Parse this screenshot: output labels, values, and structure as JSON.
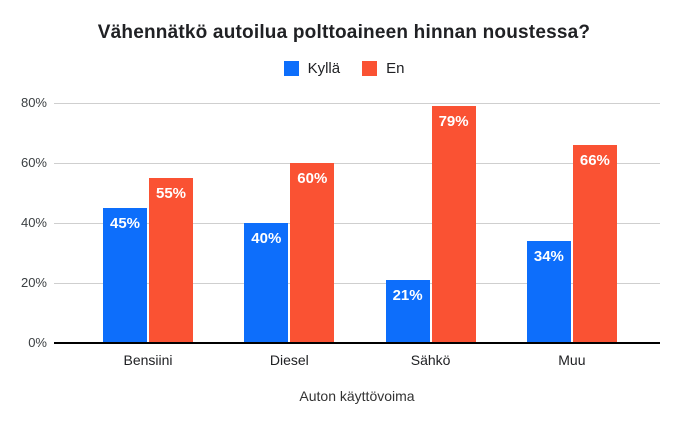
{
  "chart_data": {
    "type": "bar",
    "title": "Vähennätkö autoilua polttoaineen hinnan noustessa?",
    "xlabel": "Auton käyttövoima",
    "ylabel": "",
    "categories": [
      "Bensiini",
      "Diesel",
      "Sähkö",
      "Muu"
    ],
    "series": [
      {
        "name": "Kyllä",
        "color": "#0d6efb",
        "values": [
          45,
          40,
          21,
          34
        ]
      },
      {
        "name": "En",
        "color": "#fa5233",
        "values": [
          55,
          60,
          79,
          66
        ]
      }
    ],
    "value_labels": [
      [
        "45%",
        "40%",
        "21%",
        "34%"
      ],
      [
        "55%",
        "60%",
        "79%",
        "66%"
      ]
    ],
    "y_ticks": [
      "0%",
      "20%",
      "40%",
      "60%",
      "80%"
    ],
    "y_tick_values": [
      0,
      20,
      40,
      60,
      80
    ],
    "ylim": [
      0,
      80
    ],
    "grid": true,
    "legend_position": "top"
  },
  "colors": {
    "background": "#ffffff",
    "grid": "#cfcfcf",
    "axis_line": "#000000",
    "title_text": "#202124",
    "tick_text": "#3c4043",
    "category_text": "#202124",
    "bar_label_text": "#ffffff"
  }
}
